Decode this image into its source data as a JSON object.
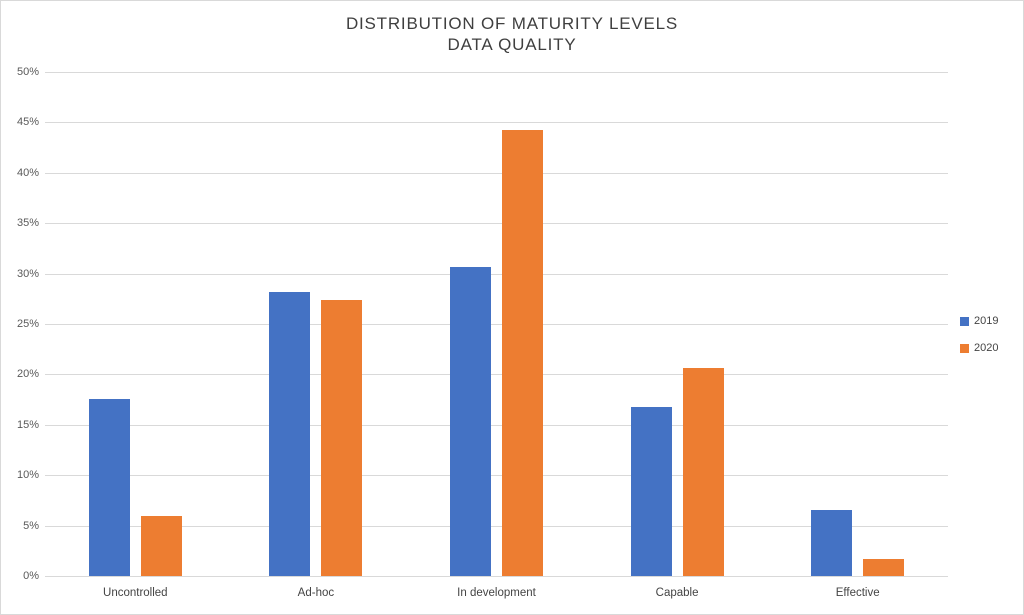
{
  "title": {
    "line1": "DISTRIBUTION OF MATURITY LEVELS",
    "line2": "DATA QUALITY"
  },
  "chart_data": {
    "type": "bar",
    "title": "DISTRIBUTION OF MATURITY LEVELS",
    "subtitle": "DATA QUALITY",
    "categories": [
      "Uncontrolled",
      "Ad-hoc",
      "In development",
      "Capable",
      "Effective"
    ],
    "series": [
      {
        "name": "2019",
        "color": "#4472C4",
        "values": [
          17.6,
          28.2,
          30.7,
          16.8,
          6.5
        ]
      },
      {
        "name": "2020",
        "color": "#ED7D31",
        "values": [
          6.0,
          27.4,
          44.2,
          20.6,
          1.7
        ]
      }
    ],
    "y_axis": {
      "min": 0,
      "max": 50,
      "step": 5,
      "tick_labels": [
        "0%",
        "5%",
        "10%",
        "15%",
        "20%",
        "25%",
        "30%",
        "35%",
        "40%",
        "45%",
        "50%"
      ]
    },
    "xlabel": "",
    "ylabel": "",
    "grid": true,
    "legend_position": "right"
  },
  "colors": {
    "background": "#FFFFFF",
    "border": "#D9D9D9",
    "gridline": "#D9D9D9",
    "axis_text": "#595959",
    "category_text": "#444444",
    "title_text": "#3F3F3F",
    "series_2019": "#4472C4",
    "series_2020": "#ED7D31"
  }
}
